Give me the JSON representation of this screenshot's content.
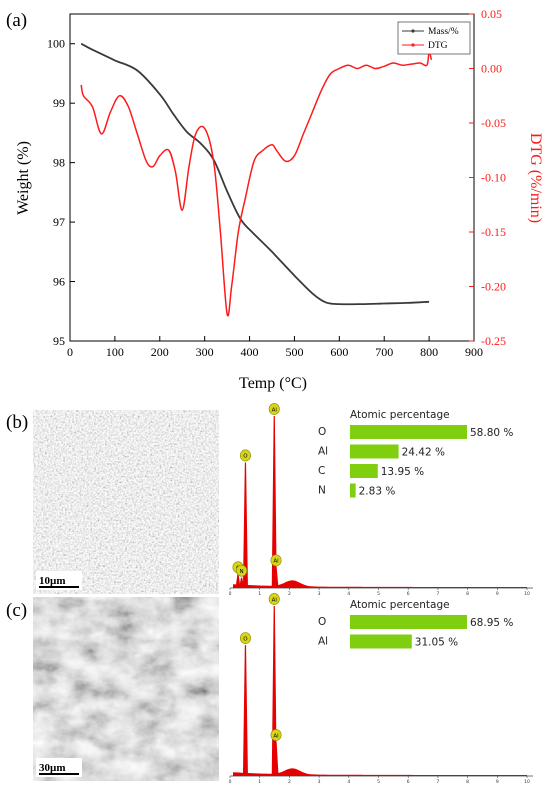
{
  "panel_a": {
    "label": "(a)",
    "legend": {
      "mass": "Mass/%",
      "dtg": "DTG"
    },
    "colors": {
      "mass": "#3a3a3a",
      "dtg": "#ff1a1a"
    },
    "chart_data": {
      "type": "line",
      "xlabel": "Temp (°C)",
      "ylabel_left": "Weight (%)",
      "ylabel_right": "DTG (%/min)",
      "xlim": [
        0,
        900
      ],
      "ylim_left": [
        95,
        100.5
      ],
      "ylim_right": [
        -0.25,
        0.05
      ],
      "x_ticks": [
        "0",
        "100",
        "200",
        "300",
        "400",
        "500",
        "600",
        "700",
        "800",
        "900"
      ],
      "y_left_ticks": [
        "95",
        "96",
        "97",
        "98",
        "99",
        "100"
      ],
      "y_right_ticks": [
        "-0.25",
        "-0.20",
        "-0.15",
        "-0.10",
        "-0.05",
        "0.00",
        "0.05"
      ],
      "legend_position": "top-right",
      "series": [
        {
          "name": "Mass/%",
          "axis": "left",
          "x": [
            25,
            50,
            100,
            150,
            200,
            230,
            260,
            290,
            320,
            350,
            380,
            410,
            450,
            500,
            540,
            570,
            600,
            650,
            700,
            750,
            800
          ],
          "y": [
            100.0,
            99.9,
            99.72,
            99.55,
            99.15,
            98.82,
            98.52,
            98.33,
            98.05,
            97.52,
            97.05,
            96.8,
            96.5,
            96.1,
            95.8,
            95.65,
            95.62,
            95.62,
            95.63,
            95.64,
            95.66
          ]
        },
        {
          "name": "DTG",
          "axis": "right",
          "x": [
            25,
            30,
            50,
            70,
            90,
            110,
            130,
            150,
            170,
            185,
            200,
            220,
            235,
            250,
            265,
            280,
            300,
            320,
            335,
            350,
            360,
            375,
            390,
            410,
            430,
            450,
            460,
            480,
            500,
            520,
            540,
            560,
            580,
            600,
            620,
            640,
            660,
            680,
            700,
            720,
            740,
            760,
            780,
            795,
            800,
            805
          ],
          "y": [
            -0.015,
            -0.025,
            -0.035,
            -0.06,
            -0.04,
            -0.025,
            -0.035,
            -0.06,
            -0.085,
            -0.09,
            -0.08,
            -0.075,
            -0.095,
            -0.13,
            -0.09,
            -0.06,
            -0.055,
            -0.085,
            -0.15,
            -0.225,
            -0.2,
            -0.15,
            -0.12,
            -0.085,
            -0.075,
            -0.07,
            -0.075,
            -0.085,
            -0.08,
            -0.06,
            -0.04,
            -0.02,
            -0.005,
            0.0,
            0.003,
            0.0,
            0.003,
            0.0,
            0.002,
            0.005,
            0.003,
            0.004,
            0.005,
            0.003,
            0.015,
            0.008
          ]
        }
      ]
    }
  },
  "panel_b": {
    "label": "(b)",
    "scalebar": "10µm",
    "spectrum_peaks": [
      {
        "element": "O",
        "kev": 0.52,
        "height": 0.73
      },
      {
        "element": "Al",
        "kev": 1.49,
        "height": 1.0
      },
      {
        "element": "C",
        "kev": 0.27,
        "height": 0.08
      },
      {
        "element": "N",
        "kev": 0.39,
        "height": 0.06
      },
      {
        "element": "Al",
        "kev": 1.55,
        "height": 0.12
      }
    ],
    "spectrum_ticks": [
      "0",
      "1",
      "2",
      "3",
      "4",
      "5",
      "6",
      "7",
      "8",
      "9",
      "10"
    ],
    "composition": {
      "title": "Atomic percentage",
      "rows": [
        {
          "element": "O",
          "value": 58.8,
          "label": "58.80 %"
        },
        {
          "element": "Al",
          "value": 24.42,
          "label": "24.42 %"
        },
        {
          "element": "C",
          "value": 13.95,
          "label": "13.95 %"
        },
        {
          "element": "N",
          "value": 2.83,
          "label": "2.83 %"
        }
      ]
    }
  },
  "panel_c": {
    "label": "(c)",
    "scalebar": "30µm",
    "spectrum_peaks": [
      {
        "element": "O",
        "kev": 0.52,
        "height": 0.77
      },
      {
        "element": "Al",
        "kev": 1.49,
        "height": 1.0
      },
      {
        "element": "Al",
        "kev": 1.55,
        "height": 0.2
      }
    ],
    "spectrum_ticks": [
      "0",
      "1",
      "2",
      "3",
      "4",
      "5",
      "6",
      "7",
      "8",
      "9",
      "10"
    ],
    "composition": {
      "title": "Atomic percentage",
      "rows": [
        {
          "element": "O",
          "value": 68.95,
          "label": "68.95 %"
        },
        {
          "element": "Al",
          "value": 31.05,
          "label": "31.05 %"
        }
      ]
    }
  },
  "bar_color": "#7fcf10",
  "spectrum_color": "#e60000",
  "peak_badge_color": "#d8d418"
}
